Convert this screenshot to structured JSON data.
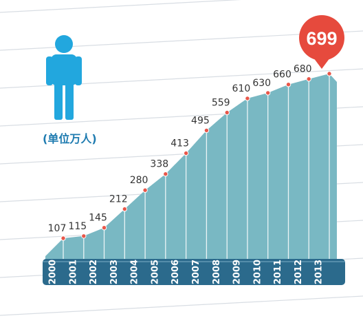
{
  "colors": {
    "area": "#79b8c3",
    "area_top": "#8cc5cf",
    "band": "#2b6a8c",
    "point": "#e8574a",
    "callout": "#e64a3d",
    "person": "#22a7de",
    "unit_text": "#1e7bb0",
    "line": "#d8dde3"
  },
  "icons": {
    "person": "person-icon"
  },
  "chart_data": {
    "type": "area",
    "unit_label": "(单位万人)",
    "x": [
      "2000",
      "2001",
      "2002",
      "2003",
      "2004",
      "2005",
      "2006",
      "2007",
      "2008",
      "2009",
      "2010",
      "2011",
      "2012",
      "2013"
    ],
    "y": [
      107,
      115,
      145,
      212,
      280,
      338,
      413,
      495,
      559,
      610,
      630,
      660,
      680,
      699
    ],
    "data_labels": [
      "107",
      "115",
      "145",
      "212",
      "280",
      "338",
      "413",
      "495",
      "559",
      "610",
      "630",
      "660",
      "680",
      "699"
    ],
    "highlight": {
      "label": "699",
      "year": "2013"
    },
    "grid": false,
    "legend": "none"
  }
}
